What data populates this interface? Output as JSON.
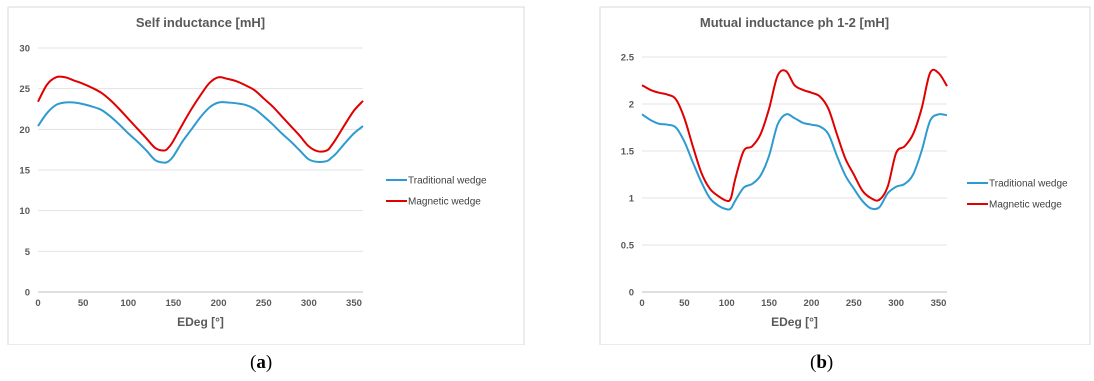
{
  "chart_data": [
    {
      "type": "line",
      "title": "Self inductance [mH]",
      "xlabel": "EDeg [°]",
      "ylabel": "",
      "xlim": [
        0,
        360
      ],
      "ylim": [
        0,
        30
      ],
      "xticks": [
        "0",
        "50",
        "100",
        "150",
        "200",
        "250",
        "300",
        "350"
      ],
      "yticks": [
        "0",
        "5",
        "10",
        "15",
        "20",
        "25",
        "30"
      ],
      "grid": true,
      "legend": "right",
      "series": [
        {
          "name": "Traditional wedge",
          "color": "#2E9BD0",
          "x": [
            0,
            10,
            20,
            30,
            40,
            50,
            60,
            70,
            80,
            90,
            100,
            110,
            120,
            130,
            140,
            145,
            150,
            160,
            170,
            180,
            190,
            200,
            210,
            220,
            230,
            240,
            250,
            260,
            270,
            280,
            290,
            300,
            310,
            320,
            325,
            330,
            340,
            350,
            360
          ],
          "y": [
            20.4,
            22.0,
            23.0,
            23.3,
            23.3,
            23.1,
            22.8,
            22.4,
            21.6,
            20.6,
            19.5,
            18.5,
            17.4,
            16.2,
            15.9,
            16.1,
            16.7,
            18.5,
            20.0,
            21.5,
            22.7,
            23.3,
            23.3,
            23.2,
            23.0,
            22.5,
            21.6,
            20.6,
            19.5,
            18.5,
            17.4,
            16.3,
            16.0,
            16.1,
            16.5,
            17.0,
            18.3,
            19.5,
            20.4
          ]
        },
        {
          "name": "Magnetic wedge",
          "color": "#E00000",
          "x": [
            0,
            10,
            20,
            30,
            40,
            50,
            60,
            70,
            80,
            90,
            100,
            110,
            120,
            130,
            140,
            145,
            150,
            160,
            170,
            180,
            190,
            200,
            210,
            220,
            230,
            240,
            250,
            260,
            270,
            280,
            290,
            300,
            310,
            320,
            325,
            330,
            340,
            350,
            360
          ],
          "y": [
            23.4,
            25.5,
            26.4,
            26.4,
            26.0,
            25.6,
            25.1,
            24.5,
            23.6,
            22.5,
            21.3,
            20.1,
            18.9,
            17.7,
            17.4,
            17.8,
            18.6,
            20.6,
            22.5,
            24.2,
            25.7,
            26.4,
            26.2,
            25.9,
            25.4,
            24.8,
            23.8,
            22.8,
            21.6,
            20.4,
            19.2,
            17.9,
            17.3,
            17.4,
            18.0,
            18.8,
            20.6,
            22.3,
            23.5
          ]
        }
      ]
    },
    {
      "type": "line",
      "title": "Mutual inductance ph 1-2 [mH]",
      "xlabel": "EDeg [°]",
      "ylabel": "",
      "xlim": [
        0,
        360
      ],
      "ylim": [
        0,
        2.5
      ],
      "xticks": [
        "0",
        "50",
        "100",
        "150",
        "200",
        "250",
        "300",
        "350"
      ],
      "yticks": [
        "0",
        "0.5",
        "1",
        "1.5",
        "2",
        "2.5"
      ],
      "grid": true,
      "legend": "right",
      "series": [
        {
          "name": "Traditional wedge",
          "color": "#2E9BD0",
          "x": [
            0,
            10,
            20,
            30,
            40,
            50,
            60,
            70,
            80,
            90,
            100,
            105,
            110,
            120,
            130,
            140,
            150,
            160,
            170,
            180,
            190,
            200,
            210,
            220,
            230,
            240,
            250,
            260,
            270,
            280,
            290,
            300,
            310,
            320,
            330,
            340,
            350,
            360
          ],
          "y": [
            1.89,
            1.83,
            1.79,
            1.78,
            1.75,
            1.6,
            1.38,
            1.17,
            1.0,
            0.92,
            0.88,
            0.89,
            0.97,
            1.11,
            1.15,
            1.24,
            1.45,
            1.78,
            1.89,
            1.85,
            1.8,
            1.78,
            1.76,
            1.68,
            1.45,
            1.24,
            1.1,
            0.97,
            0.89,
            0.9,
            1.05,
            1.12,
            1.15,
            1.25,
            1.5,
            1.82,
            1.89,
            1.88
          ]
        },
        {
          "name": "Magnetic wedge",
          "color": "#E00000",
          "x": [
            0,
            10,
            20,
            30,
            40,
            50,
            60,
            70,
            80,
            90,
            100,
            105,
            110,
            120,
            130,
            140,
            150,
            160,
            170,
            180,
            190,
            200,
            210,
            220,
            230,
            240,
            250,
            260,
            270,
            280,
            290,
            300,
            310,
            320,
            330,
            340,
            350,
            360
          ],
          "y": [
            2.2,
            2.15,
            2.12,
            2.1,
            2.05,
            1.85,
            1.55,
            1.27,
            1.1,
            1.02,
            0.97,
            1.0,
            1.2,
            1.5,
            1.55,
            1.68,
            1.95,
            2.3,
            2.35,
            2.2,
            2.15,
            2.12,
            2.08,
            1.95,
            1.68,
            1.42,
            1.25,
            1.08,
            1.0,
            0.98,
            1.12,
            1.48,
            1.55,
            1.68,
            1.95,
            2.33,
            2.33,
            2.19
          ]
        }
      ]
    }
  ],
  "captions": {
    "a": {
      "open": "(",
      "letter": "a",
      "close": ")"
    },
    "b": {
      "open": "(",
      "letter": "b",
      "close": ")"
    }
  }
}
